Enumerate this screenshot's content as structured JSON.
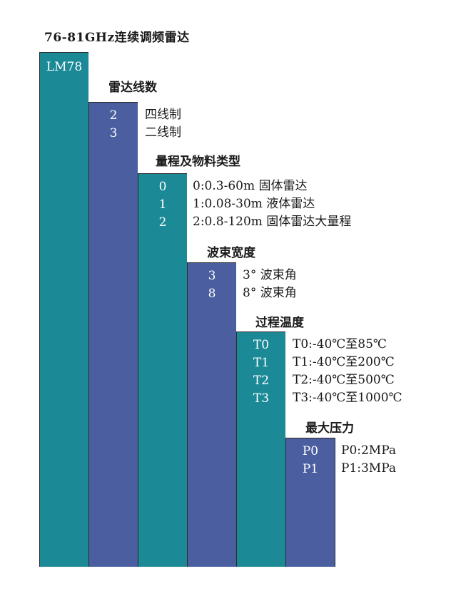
{
  "title": "76-81GHz连续调频雷达",
  "columns": [
    {
      "heading": "",
      "codes": [
        "LM78"
      ],
      "descriptions": []
    },
    {
      "heading": "雷达线数",
      "codes": [
        "2",
        "3"
      ],
      "descriptions": [
        "四线制",
        "二线制"
      ]
    },
    {
      "heading": "量程及物料类型",
      "codes": [
        "0",
        "1",
        "2"
      ],
      "descriptions": [
        "0:0.3-60m  固体雷达",
        "1:0.08-30m 液体雷达",
        "2:0.8-120m 固体雷达大量程"
      ]
    },
    {
      "heading": "波束宽度",
      "codes": [
        "3",
        "8"
      ],
      "descriptions": [
        "3° 波束角",
        "8° 波束角"
      ]
    },
    {
      "heading": "过程温度",
      "codes": [
        "T0",
        "T1",
        "T2",
        "T3"
      ],
      "descriptions": [
        "T0:-40℃至85℃",
        "T1:-40℃至200℃",
        "T2:-40℃至500℃",
        "T3:-40℃至1000℃"
      ]
    },
    {
      "heading": "最大压力",
      "codes": [
        "P0",
        "P1"
      ],
      "descriptions": [
        "P0:2MPa",
        "P1:3MPa"
      ]
    }
  ],
  "colors": {
    "teal": "#1b8a96",
    "blue": "#4a5ea0",
    "border": "#2a2a2a"
  }
}
